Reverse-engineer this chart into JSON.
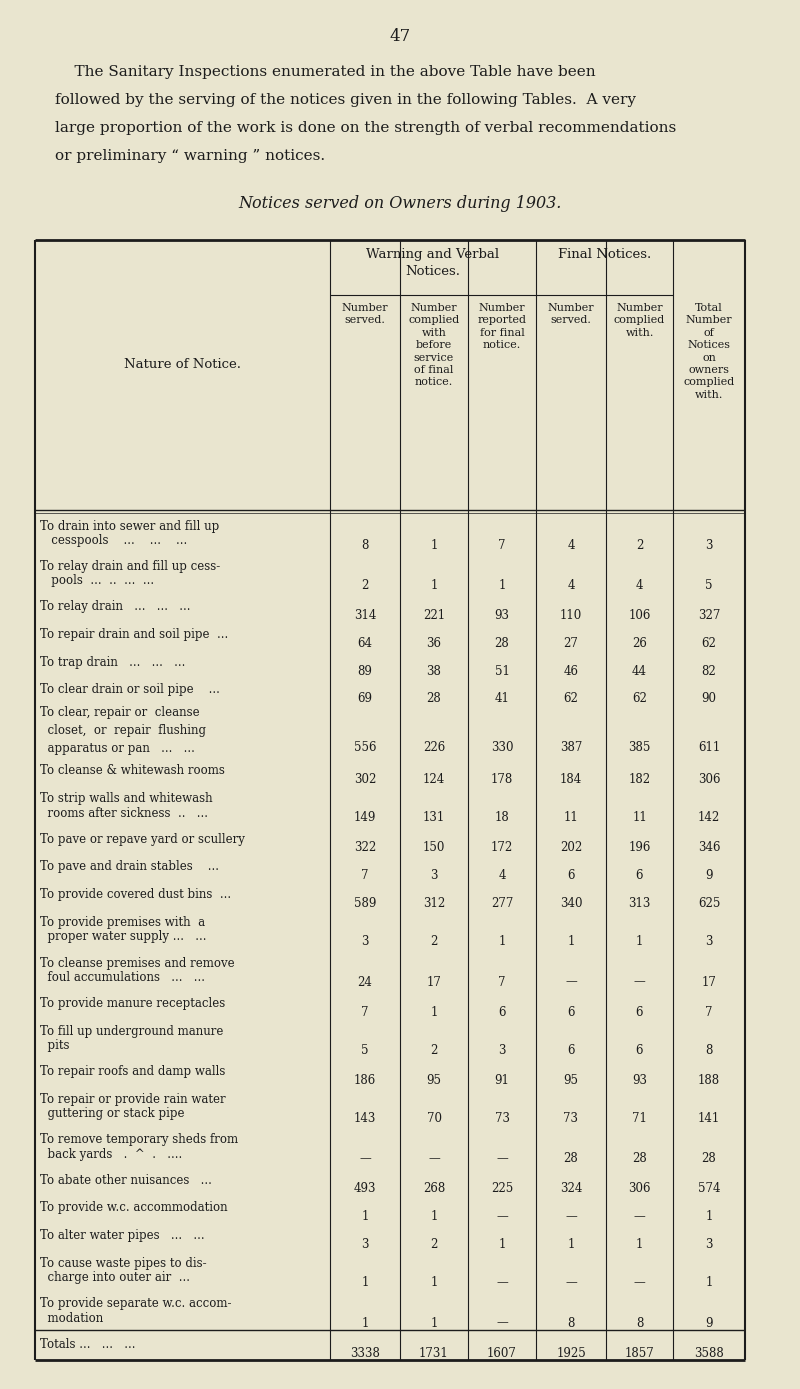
{
  "page_number": "47",
  "bg_color": "#e9e5cf",
  "text_color": "#1c1c1c",
  "intro_lines": [
    [
      "    The Sanitary Inspections enumerated in the above Table have been",
      false
    ],
    [
      "followed by the serving of the notices given in the following Tables.  A very",
      false
    ],
    [
      "large proportion of the work is done on the strength of verbal recommendations",
      false
    ],
    [
      "or preliminary “ warning ” notices.",
      false
    ]
  ],
  "table_title": "Notices served on Owners during 1903.",
  "col_group1_label": "Warning and Verbal\nNotices.",
  "col_group2_label": "Final Notices.",
  "col_headers": [
    "Number\nserved.",
    "Number\ncomplied\nwith\nbefore\nservice\nof final\nnotice.",
    "Number\nreported\nfor final\nnotice.",
    "Number\nserved.",
    "Number\ncomplied\nwith.",
    "Total\nNumber\nof\nNotices\non\nowners\ncomplied\nwith."
  ],
  "nature_col_header": "Nature of Notice.",
  "rows": [
    {
      "label": [
        "To drain into sewer and fill up",
        "   cesspools    ...    ...    ..."
      ],
      "v": [
        "8",
        "1",
        "7",
        "4",
        "2",
        "3"
      ],
      "total": false
    },
    {
      "label": [
        "To relay drain and fill up cess-",
        "   pools  ...  ..  ...  ..."
      ],
      "v": [
        "2",
        "1",
        "1",
        "4",
        "4",
        "5"
      ],
      "total": false
    },
    {
      "label": [
        "To relay drain   ...   ...   ..."
      ],
      "v": [
        "314",
        "221",
        "93",
        "110",
        "106",
        "327"
      ],
      "total": false
    },
    {
      "label": [
        "To repair drain and soil pipe  ..."
      ],
      "v": [
        "64",
        "36",
        "28",
        "27",
        "26",
        "62"
      ],
      "total": false
    },
    {
      "label": [
        "To trap drain   ...   ...   ..."
      ],
      "v": [
        "89",
        "38",
        "51",
        "46",
        "44",
        "82"
      ],
      "total": false
    },
    {
      "label": [
        "To clear drain or soil pipe    ..."
      ],
      "v": [
        "69",
        "28",
        "41",
        "62",
        "62",
        "90"
      ],
      "total": false
    },
    {
      "label": [
        "To clear, repair or  cleanse",
        "  closet,  or  repair  flushing",
        "  apparatus or pan   ...   ..."
      ],
      "v": [
        "556",
        "226",
        "330",
        "387",
        "385",
        "611"
      ],
      "total": false
    },
    {
      "label": [
        "To cleanse & whitewash rooms"
      ],
      "v": [
        "302",
        "124",
        "178",
        "184",
        "182",
        "306"
      ],
      "total": false
    },
    {
      "label": [
        "To strip walls and whitewash",
        "  rooms after sickness  ..   ..."
      ],
      "v": [
        "149",
        "131",
        "18",
        "11",
        "11",
        "142"
      ],
      "total": false
    },
    {
      "label": [
        "To pave or repave yard or scullery"
      ],
      "v": [
        "322",
        "150",
        "172",
        "202",
        "196",
        "346"
      ],
      "total": false
    },
    {
      "label": [
        "To pave and drain stables    ..."
      ],
      "v": [
        "7",
        "3",
        "4",
        "6",
        "6",
        "9"
      ],
      "total": false
    },
    {
      "label": [
        "To provide covered dust bins  ..."
      ],
      "v": [
        "589",
        "312",
        "277",
        "340",
        "313",
        "625"
      ],
      "total": false
    },
    {
      "label": [
        "To provide premises with  a",
        "  proper water supply ...   ..."
      ],
      "v": [
        "3",
        "2",
        "1",
        "1",
        "1",
        "3"
      ],
      "total": false
    },
    {
      "label": [
        "To cleanse premises and remove",
        "  foul accumulations   ...   ..."
      ],
      "v": [
        "24",
        "17",
        "7",
        "—",
        "—",
        "17"
      ],
      "total": false
    },
    {
      "label": [
        "To provide manure receptacles"
      ],
      "v": [
        "7",
        "1",
        "6",
        "6",
        "6",
        "7"
      ],
      "total": false
    },
    {
      "label": [
        "To fill up underground manure",
        "  pits"
      ],
      "v": [
        "5",
        "2",
        "3",
        "6",
        "6",
        "8"
      ],
      "total": false
    },
    {
      "label": [
        "To repair roofs and damp walls"
      ],
      "v": [
        "186",
        "95",
        "91",
        "95",
        "93",
        "188"
      ],
      "total": false
    },
    {
      "label": [
        "To repair or provide rain water",
        "  guttering or stack pipe"
      ],
      "v": [
        "143",
        "70",
        "73",
        "73",
        "71",
        "141"
      ],
      "total": false
    },
    {
      "label": [
        "To remove temporary sheds from",
        "  back yards   .  ^  .   ...."
      ],
      "v": [
        "—",
        "—",
        "—",
        "28",
        "28",
        "28"
      ],
      "total": false
    },
    {
      "label": [
        "To abate other nuisances   ..."
      ],
      "v": [
        "493",
        "268",
        "225",
        "324",
        "306",
        "574"
      ],
      "total": false
    },
    {
      "label": [
        "To provide w.c. accommodation"
      ],
      "v": [
        "1",
        "1",
        "—",
        "—",
        "—",
        "1"
      ],
      "total": false
    },
    {
      "label": [
        "To alter water pipes   ...   ..."
      ],
      "v": [
        "3",
        "2",
        "1",
        "1",
        "1",
        "3"
      ],
      "total": false
    },
    {
      "label": [
        "To cause waste pipes to dis-",
        "  charge into outer air  ..."
      ],
      "v": [
        "1",
        "1",
        "—",
        "—",
        "—",
        "1"
      ],
      "total": false
    },
    {
      "label": [
        "To provide separate w.c. accom-",
        "  modation"
      ],
      "v": [
        "1",
        "1",
        "—",
        "8",
        "8",
        "9"
      ],
      "total": false
    },
    {
      "label": [
        "Totals ...   ...   ..."
      ],
      "v": [
        "3338",
        "1731",
        "1607",
        "1925",
        "1857",
        "3588"
      ],
      "total": true
    }
  ]
}
